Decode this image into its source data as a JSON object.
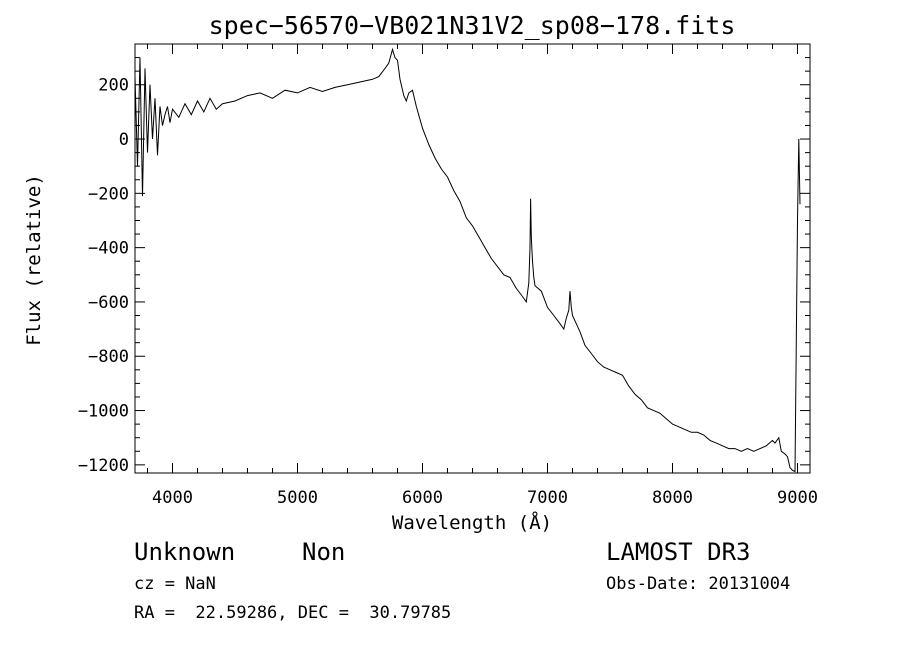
{
  "chart_data": {
    "type": "line",
    "title": "spec−56570−VB021N31V2_sp08−178.fits",
    "xlabel": "Wavelength (Å)",
    "ylabel": "Flux (relative)",
    "xlim": [
      3700,
      9100
    ],
    "ylim": [
      -1230,
      350
    ],
    "xticks": [
      4000,
      5000,
      6000,
      7000,
      8000,
      9000
    ],
    "xtick_labels": [
      "4000",
      "5000",
      "6000",
      "7000",
      "8000",
      "9000"
    ],
    "yticks": [
      200,
      0,
      -200,
      -400,
      -600,
      -800,
      -1000,
      -1200
    ],
    "ytick_labels": [
      "200",
      "0",
      "−200",
      "−400",
      "−600",
      "−800",
      "−1000",
      "−1200"
    ],
    "grid": false,
    "series": [
      {
        "name": "spectrum",
        "color": "#000000",
        "x": [
          3700,
          3720,
          3740,
          3760,
          3780,
          3800,
          3820,
          3840,
          3860,
          3880,
          3900,
          3920,
          3940,
          3960,
          3980,
          4000,
          4050,
          4100,
          4150,
          4200,
          4250,
          4300,
          4350,
          4400,
          4500,
          4600,
          4700,
          4800,
          4900,
          5000,
          5100,
          5200,
          5300,
          5400,
          5500,
          5600,
          5650,
          5700,
          5730,
          5760,
          5780,
          5800,
          5820,
          5850,
          5870,
          5890,
          5920,
          5950,
          6000,
          6050,
          6100,
          6150,
          6200,
          6250,
          6300,
          6350,
          6400,
          6450,
          6500,
          6550,
          6600,
          6650,
          6700,
          6750,
          6800,
          6830,
          6850,
          6860,
          6865,
          6870,
          6880,
          6890,
          6900,
          6950,
          7000,
          7050,
          7100,
          7130,
          7150,
          7170,
          7180,
          7190,
          7200,
          7230,
          7260,
          7300,
          7350,
          7400,
          7450,
          7500,
          7550,
          7600,
          7650,
          7700,
          7750,
          7800,
          7850,
          7900,
          7950,
          8000,
          8050,
          8100,
          8150,
          8200,
          8250,
          8300,
          8350,
          8400,
          8450,
          8500,
          8550,
          8600,
          8650,
          8700,
          8750,
          8800,
          8820,
          8850,
          8870,
          8900,
          8920,
          8940,
          8960,
          8980,
          9000,
          9010,
          9020
        ],
        "values": [
          230,
          -100,
          300,
          -210,
          260,
          -50,
          200,
          0,
          150,
          -60,
          120,
          50,
          90,
          120,
          60,
          110,
          80,
          130,
          90,
          140,
          100,
          150,
          110,
          130,
          140,
          160,
          170,
          150,
          180,
          170,
          190,
          175,
          190,
          200,
          210,
          220,
          230,
          260,
          280,
          330,
          300,
          290,
          220,
          160,
          140,
          170,
          180,
          120,
          40,
          -20,
          -70,
          -110,
          -140,
          -190,
          -230,
          -290,
          -320,
          -360,
          -400,
          -440,
          -470,
          -500,
          -510,
          -550,
          -580,
          -600,
          -530,
          -400,
          -220,
          -360,
          -450,
          -510,
          -540,
          -560,
          -620,
          -650,
          -680,
          -700,
          -660,
          -630,
          -560,
          -620,
          -650,
          -680,
          -710,
          -760,
          -790,
          -820,
          -840,
          -850,
          -860,
          -870,
          -910,
          -940,
          -960,
          -990,
          -1000,
          -1010,
          -1030,
          -1050,
          -1060,
          -1070,
          -1080,
          -1080,
          -1090,
          -1110,
          -1120,
          -1130,
          -1140,
          -1140,
          -1150,
          -1140,
          -1150,
          -1140,
          -1130,
          -1110,
          -1120,
          -1100,
          -1150,
          -1160,
          -1170,
          -1210,
          -1220,
          -1225,
          -300,
          0,
          -240
        ]
      }
    ]
  },
  "info": {
    "object_class": "Unknown",
    "object_type": "Non",
    "survey": "LAMOST DR3",
    "cz_line": "cz = NaN",
    "obs_date": "Obs-Date: 20131004",
    "coords": "RA =  22.59286, DEC =  30.79785"
  }
}
